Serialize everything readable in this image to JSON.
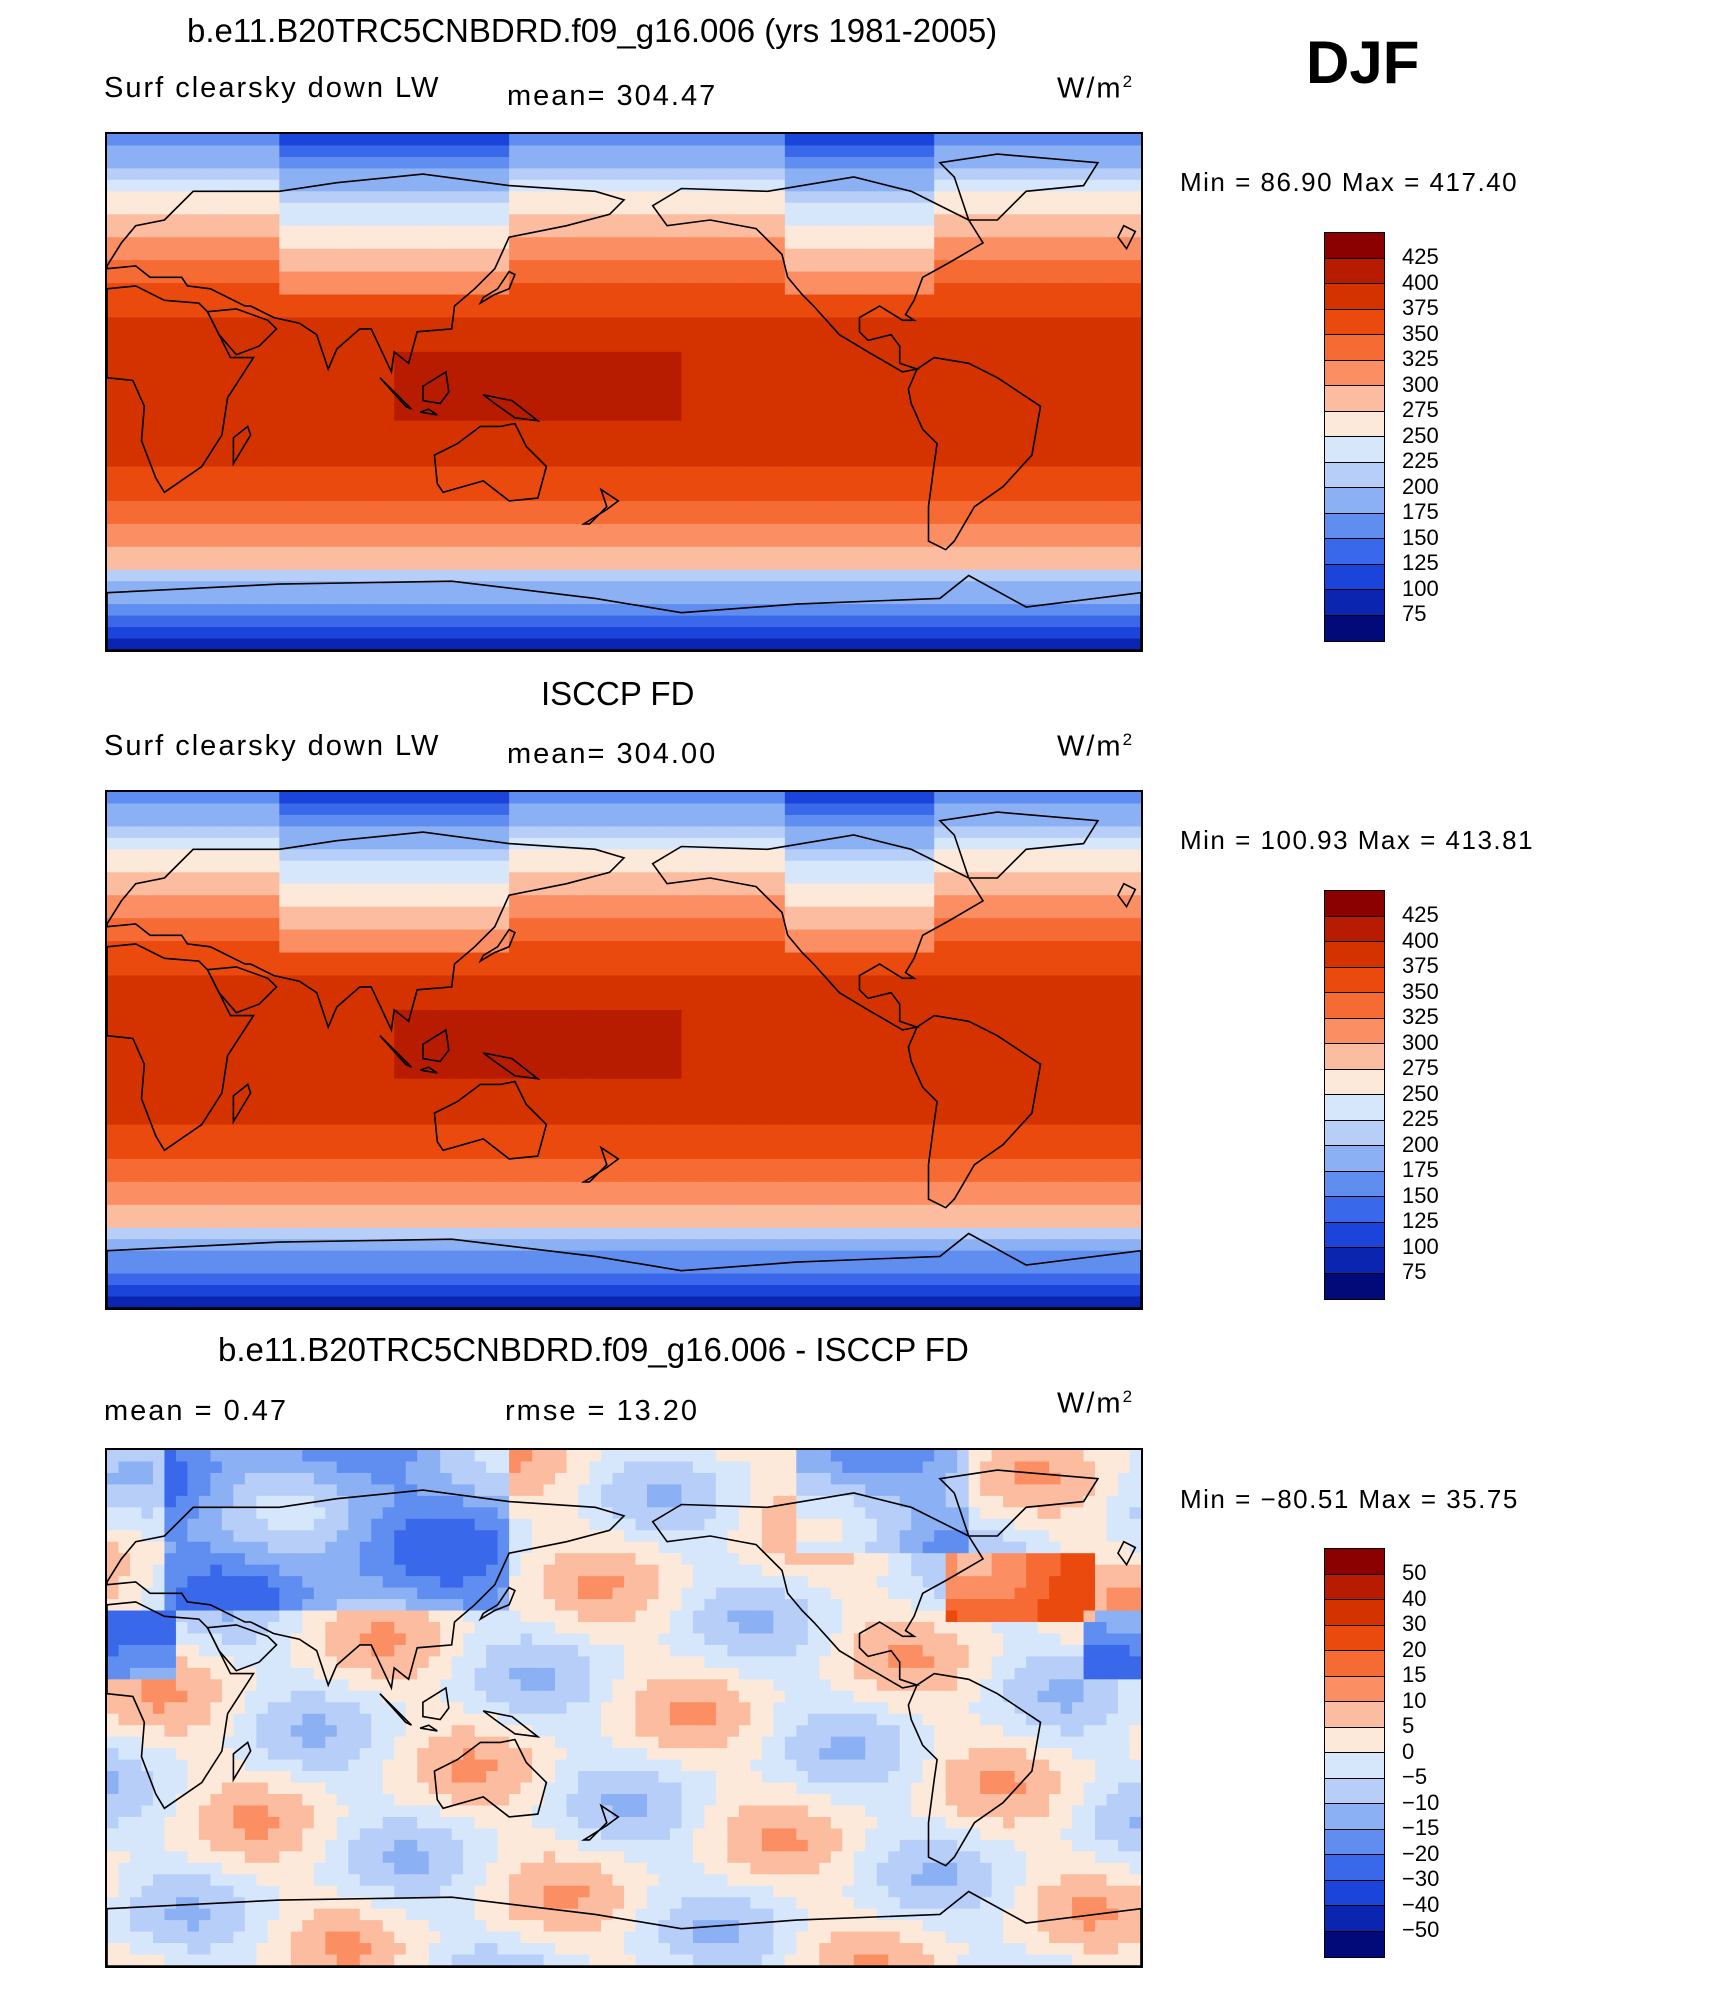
{
  "season": "DJF",
  "panels": [
    {
      "title": "b.e11.B20TRC5CNBDRD.f09_g16.006 (yrs 1981-2005)",
      "left_label": "Surf clearsky down LW",
      "center_label": "mean= 304.47",
      "units": "W/m",
      "units_sup": "2",
      "minmax": "Min =   86.90 Max = 417.40",
      "colorbar_levels": [
        "425",
        "400",
        "375",
        "350",
        "325",
        "300",
        "275",
        "250",
        "225",
        "200",
        "175",
        "150",
        "125",
        "100",
        "75"
      ],
      "colorbar_colors": [
        "#8b0000",
        "#b81c00",
        "#d43300",
        "#ea4a0d",
        "#f66a33",
        "#fb8f63",
        "#fbbca0",
        "#fde9d9",
        "#d7e7fb",
        "#b7cff8",
        "#8bb0f4",
        "#5f8ef0",
        "#3a68ea",
        "#1b44db",
        "#0a25b0",
        "#020a7a"
      ],
      "map_kind": "abs"
    },
    {
      "title": "ISCCP FD",
      "left_label": "Surf clearsky down LW",
      "center_label": "mean= 304.00",
      "units": "W/m",
      "units_sup": "2",
      "minmax": "Min = 100.93 Max = 413.81",
      "colorbar_levels": [
        "425",
        "400",
        "375",
        "350",
        "325",
        "300",
        "275",
        "250",
        "225",
        "200",
        "175",
        "150",
        "125",
        "100",
        "75"
      ],
      "colorbar_colors": [
        "#8b0000",
        "#b81c00",
        "#d43300",
        "#ea4a0d",
        "#f66a33",
        "#fb8f63",
        "#fbbca0",
        "#fde9d9",
        "#d7e7fb",
        "#b7cff8",
        "#8bb0f4",
        "#5f8ef0",
        "#3a68ea",
        "#1b44db",
        "#0a25b0",
        "#020a7a"
      ],
      "map_kind": "abs"
    },
    {
      "title": "b.e11.B20TRC5CNBDRD.f09_g16.006 - ISCCP FD",
      "left_label": "mean =    0.47",
      "center_label": "rmse =   13.20",
      "units": "W/m",
      "units_sup": "2",
      "minmax": "Min = −80.51 Max =   35.75",
      "colorbar_levels": [
        "50",
        "40",
        "30",
        "20",
        "15",
        "10",
        "5",
        "0",
        "−5",
        "−10",
        "−15",
        "−20",
        "−30",
        "−40",
        "−50"
      ],
      "colorbar_colors": [
        "#8b0000",
        "#b81c00",
        "#d43300",
        "#ea4a0d",
        "#f66a33",
        "#fb8f63",
        "#fbbca0",
        "#fde9d9",
        "#d7e7fb",
        "#b7cff8",
        "#8bb0f4",
        "#5f8ef0",
        "#3a68ea",
        "#1b44db",
        "#0a25b0",
        "#020a7a"
      ],
      "map_kind": "diff"
    }
  ]
}
